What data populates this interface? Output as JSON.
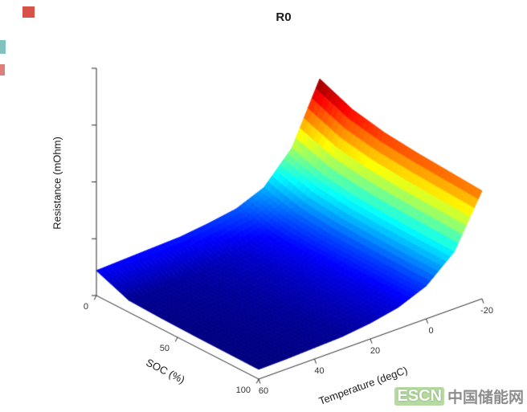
{
  "title": "R0",
  "watermark": {
    "logo": "ESCN",
    "text": "中国储能网"
  },
  "chart_data": {
    "type": "surface",
    "title": "R0",
    "xlabel": "SOC (%)",
    "ylabel": "Temperature (degC)",
    "zlabel": "Resistance (mOhm)",
    "x_soc": [
      0,
      20,
      40,
      60,
      80,
      100
    ],
    "y_temperature": [
      -20,
      -10,
      0,
      10,
      20,
      30,
      40,
      50,
      60
    ],
    "z_resistance": [
      [
        12.0,
        10.8,
        10.2,
        9.9,
        9.7,
        9.5
      ],
      [
        6.8,
        5.8,
        5.4,
        5.2,
        5.1,
        5.0
      ],
      [
        4.2,
        3.4,
        3.1,
        3.0,
        2.9,
        2.9
      ],
      [
        3.2,
        2.3,
        2.1,
        2.0,
        1.9,
        1.9
      ],
      [
        2.8,
        1.7,
        1.55,
        1.5,
        1.45,
        1.4
      ],
      [
        2.5,
        1.4,
        1.25,
        1.2,
        1.15,
        1.1
      ],
      [
        2.4,
        1.2,
        1.1,
        1.05,
        1.0,
        1.0
      ],
      [
        2.3,
        1.1,
        1.0,
        0.95,
        0.92,
        0.9
      ],
      [
        2.2,
        1.05,
        0.95,
        0.9,
        0.88,
        0.86
      ]
    ],
    "x_ticks": [
      0,
      50,
      100
    ],
    "x_tick_labels": [
      "0",
      "50",
      "100"
    ],
    "y_ticks": [
      -20,
      0,
      20,
      40,
      60
    ],
    "y_tick_labels": [
      "-20",
      "0",
      "20",
      "40",
      "60"
    ],
    "z_tick_count": 5,
    "zlim": [
      0,
      20
    ],
    "colormap": "jet",
    "grid": false,
    "legend": "none",
    "view": "3d-default"
  }
}
